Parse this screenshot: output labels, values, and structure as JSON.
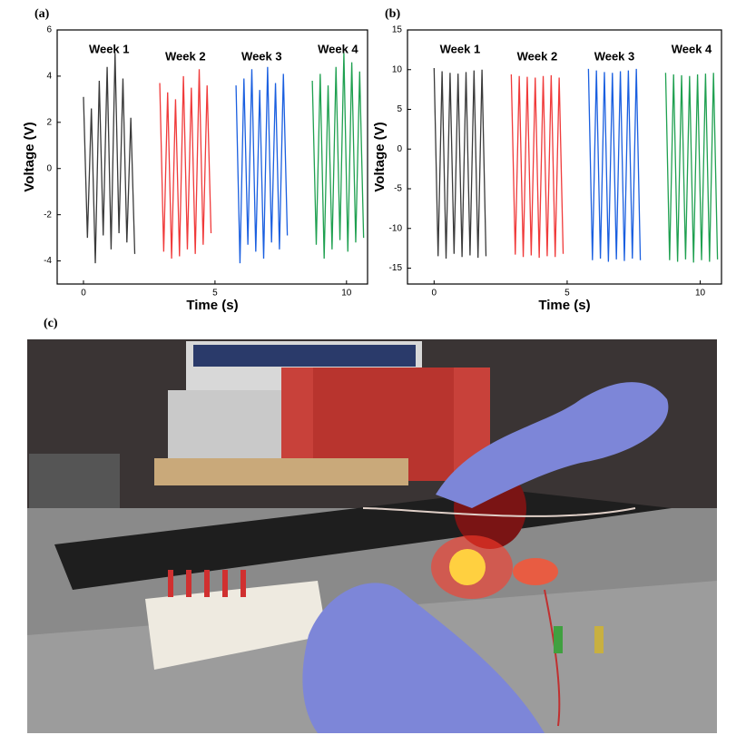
{
  "chart_data": [
    {
      "type": "line",
      "label": "(a)",
      "xlabel": "Time (s)",
      "ylabel": "Voltage (V)",
      "xlim": [
        -1,
        10.8
      ],
      "xticks": [
        0,
        5,
        10
      ],
      "ylim": [
        -5,
        6
      ],
      "yticks": [
        -4,
        -2,
        0,
        2,
        4,
        6
      ],
      "series": [
        {
          "name": "Week 1",
          "color": "#3a3a3a",
          "x": [
            0,
            0.15,
            0.3,
            0.45,
            0.6,
            0.75,
            0.9,
            1.05,
            1.2,
            1.35,
            1.5,
            1.65,
            1.8,
            1.95
          ],
          "values": [
            3.1,
            -3.0,
            2.6,
            -4.1,
            3.8,
            -2.9,
            4.4,
            -3.5,
            5.0,
            -2.8,
            3.9,
            -3.2,
            2.2,
            -3.7
          ]
        },
        {
          "name": "Week 2",
          "color": "#f03a3a",
          "x": [
            2.9,
            3.05,
            3.2,
            3.35,
            3.5,
            3.65,
            3.8,
            3.95,
            4.1,
            4.25,
            4.4,
            4.55,
            4.7,
            4.85
          ],
          "values": [
            3.7,
            -3.6,
            3.3,
            -3.9,
            3.0,
            -3.8,
            4.0,
            -3.5,
            3.5,
            -3.7,
            4.3,
            -3.3,
            3.6,
            -2.8
          ]
        },
        {
          "name": "Week 3",
          "color": "#1a5fe0",
          "x": [
            5.8,
            5.95,
            6.1,
            6.25,
            6.4,
            6.55,
            6.7,
            6.85,
            7.0,
            7.15,
            7.3,
            7.45,
            7.6,
            7.75
          ],
          "values": [
            3.6,
            -4.1,
            3.9,
            -3.3,
            4.3,
            -3.6,
            3.4,
            -3.9,
            4.4,
            -3.2,
            3.7,
            -3.5,
            4.1,
            -2.9
          ]
        },
        {
          "name": "Week 4",
          "color": "#1fa050",
          "x": [
            8.7,
            8.85,
            9.0,
            9.15,
            9.3,
            9.45,
            9.6,
            9.75,
            9.9,
            10.05,
            10.2,
            10.35,
            10.5,
            10.65
          ],
          "values": [
            3.8,
            -3.3,
            4.1,
            -3.9,
            3.6,
            -3.5,
            4.4,
            -3.1,
            5.0,
            -3.6,
            4.6,
            -3.2,
            4.2,
            -3.0
          ]
        }
      ]
    },
    {
      "type": "line",
      "label": "(b)",
      "xlabel": "Time (s)",
      "ylabel": "Voltage (V)",
      "xlim": [
        -1,
        10.8
      ],
      "xticks": [
        0,
        5,
        10
      ],
      "ylim": [
        -17,
        15
      ],
      "yticks": [
        -15,
        -10,
        -5,
        0,
        5,
        10,
        15
      ],
      "series": [
        {
          "name": "Week 1",
          "color": "#3a3a3a",
          "x": [
            0,
            0.15,
            0.3,
            0.45,
            0.6,
            0.75,
            0.9,
            1.05,
            1.2,
            1.35,
            1.5,
            1.65,
            1.8,
            1.95
          ],
          "values": [
            10.2,
            -13.5,
            9.8,
            -13.8,
            9.6,
            -13.2,
            9.5,
            -13.6,
            9.7,
            -13.4,
            9.9,
            -13.7,
            10.0,
            -13.5
          ]
        },
        {
          "name": "Week 2",
          "color": "#f03a3a",
          "x": [
            2.9,
            3.05,
            3.2,
            3.35,
            3.5,
            3.65,
            3.8,
            3.95,
            4.1,
            4.25,
            4.4,
            4.55,
            4.7,
            4.85
          ],
          "values": [
            9.4,
            -13.3,
            9.2,
            -13.6,
            9.1,
            -13.4,
            9.0,
            -13.7,
            9.2,
            -13.5,
            9.3,
            -13.6,
            9.0,
            -13.2
          ]
        },
        {
          "name": "Week 3",
          "color": "#1a5fe0",
          "x": [
            5.8,
            5.95,
            6.1,
            6.25,
            6.4,
            6.55,
            6.7,
            6.85,
            7.0,
            7.15,
            7.3,
            7.45,
            7.6,
            7.75
          ],
          "values": [
            10.1,
            -14.0,
            9.9,
            -13.8,
            9.7,
            -14.2,
            9.6,
            -13.9,
            9.8,
            -14.1,
            9.9,
            -13.8,
            10.1,
            -14.0
          ]
        },
        {
          "name": "Week 4",
          "color": "#1fa050",
          "x": [
            8.7,
            8.85,
            9.0,
            9.15,
            9.3,
            9.45,
            9.6,
            9.75,
            9.9,
            10.05,
            10.2,
            10.35,
            10.5,
            10.65
          ],
          "values": [
            9.6,
            -14.0,
            9.4,
            -14.2,
            9.3,
            -13.9,
            9.2,
            -14.3,
            9.4,
            -14.0,
            9.5,
            -14.2,
            9.6,
            -13.9
          ]
        }
      ]
    }
  ],
  "photo": {
    "label": "(c)"
  }
}
